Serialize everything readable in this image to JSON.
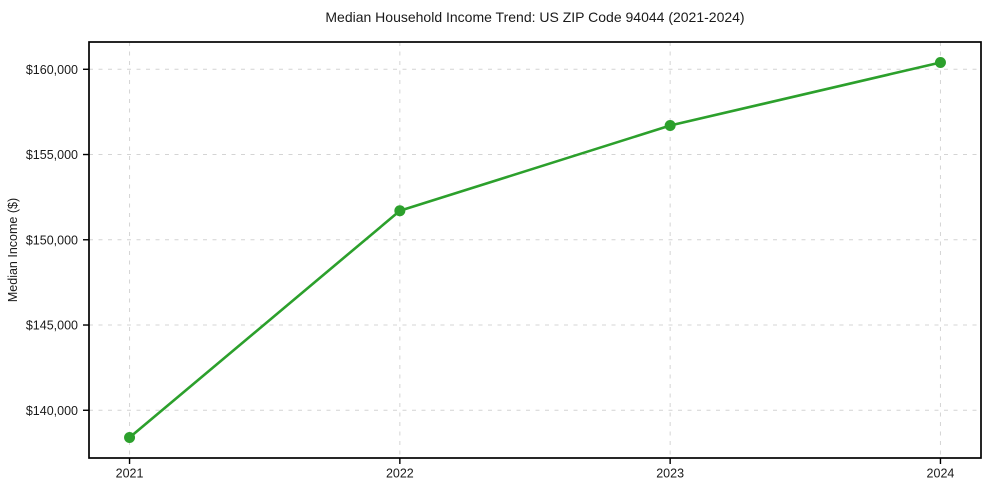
{
  "chart_data": {
    "type": "line",
    "title": "Median Household Income Trend: US ZIP Code 94044 (2021-2024)",
    "xlabel": "",
    "ylabel": "Median Income ($)",
    "x": [
      2021,
      2022,
      2023,
      2024
    ],
    "xtick_labels": [
      "2021",
      "2022",
      "2023",
      "2024"
    ],
    "series": [
      {
        "values": [
          138400,
          151700,
          156700,
          160400
        ],
        "color": "#2ca02c",
        "marker": "circle",
        "line_width": 2.6,
        "marker_radius": 5.5
      }
    ],
    "yticks": [
      140000,
      145000,
      150000,
      155000,
      160000
    ],
    "ytick_labels": [
      "$140,000",
      "$145,000",
      "$150,000",
      "$155,000",
      "$160,000"
    ],
    "xlim": [
      2020.85,
      2024.15
    ],
    "ylim": [
      137200,
      161600
    ],
    "grid": true,
    "grid_style": "dashed",
    "legend": "none",
    "colors": {
      "line": "#2ca02c",
      "grid": "#d4d4d4",
      "spine": "#000000",
      "text": "#1a1a1a",
      "background": "#ffffff"
    }
  }
}
